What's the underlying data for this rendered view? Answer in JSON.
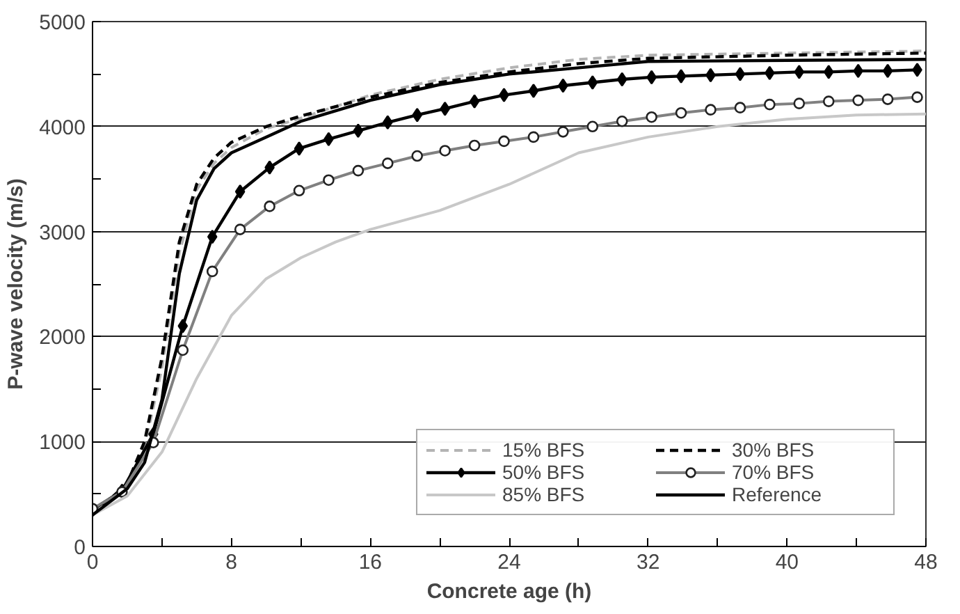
{
  "chart_data": {
    "type": "line",
    "xlabel": "Concrete age (h)",
    "ylabel": "P-wave velocity (m/s)",
    "xlim": [
      0,
      48
    ],
    "ylim": [
      0,
      5000
    ],
    "xticks": [
      0,
      {
        "value": 4,
        "label": null
      },
      8,
      {
        "value": 12,
        "label": null
      },
      16,
      {
        "value": 20,
        "label": null
      },
      24,
      {
        "value": 28,
        "label": null
      },
      32,
      {
        "value": 36,
        "label": null
      },
      40,
      {
        "value": 44,
        "label": null
      },
      48
    ],
    "yticks": [
      0,
      {
        "value": 500,
        "label": null
      },
      1000,
      {
        "value": 1500,
        "label": null
      },
      2000,
      {
        "value": 2500,
        "label": null
      },
      3000,
      {
        "value": 3500,
        "label": null
      },
      4000,
      {
        "value": 4500,
        "label": null
      },
      5000
    ],
    "grid": "y",
    "legend": "bottom right",
    "series": [
      {
        "name": "15% BFS",
        "color": "#b4b4b4",
        "line_style": "dashed",
        "marker": "none",
        "x": [
          0,
          2,
          3,
          4,
          5,
          6,
          7,
          8,
          10,
          12,
          16,
          20,
          24,
          28,
          32,
          40,
          48
        ],
        "values": [
          320,
          580,
          950,
          1700,
          2800,
          3400,
          3650,
          3800,
          3980,
          4080,
          4300,
          4450,
          4560,
          4640,
          4680,
          4700,
          4720
        ]
      },
      {
        "name": "30% BFS",
        "color": "#000000",
        "line_style": "dashed",
        "marker": "none",
        "x": [
          0,
          2,
          3,
          4,
          5,
          6,
          7,
          8,
          10,
          12,
          16,
          20,
          24,
          28,
          32,
          40,
          48
        ],
        "values": [
          300,
          600,
          1000,
          1800,
          2900,
          3450,
          3700,
          3850,
          4000,
          4100,
          4280,
          4420,
          4520,
          4600,
          4650,
          4680,
          4700
        ]
      },
      {
        "name": "50% BFS",
        "color": "#000000",
        "line_style": "solid",
        "marker": "diamond",
        "x": [
          0,
          1.7,
          3.5,
          5.2,
          6.9,
          8.5,
          10.2,
          11.9,
          13.6,
          15.3,
          17,
          18.7,
          20.3,
          22,
          23.7,
          25.4,
          27.1,
          28.8,
          30.5,
          32.2,
          33.9,
          35.6,
          37.3,
          39,
          40.7,
          42.4,
          44.1,
          45.8,
          47.5
        ],
        "values": [
          350,
          530,
          1070,
          2100,
          2950,
          3380,
          3610,
          3790,
          3880,
          3960,
          4040,
          4110,
          4170,
          4240,
          4300,
          4340,
          4390,
          4420,
          4450,
          4470,
          4480,
          4490,
          4500,
          4510,
          4520,
          4520,
          4530,
          4530,
          4540
        ]
      },
      {
        "name": "70% BFS",
        "color": "#808080",
        "line_style": "solid",
        "marker": "circle",
        "x": [
          0,
          1.7,
          3.5,
          5.2,
          6.9,
          8.5,
          10.2,
          11.9,
          13.6,
          15.3,
          17,
          18.7,
          20.3,
          22,
          23.7,
          25.4,
          27.1,
          28.8,
          30.5,
          32.2,
          33.9,
          35.6,
          37.3,
          39,
          40.7,
          42.4,
          44.1,
          45.8,
          47.5
        ],
        "values": [
          360,
          520,
          990,
          1870,
          2620,
          3020,
          3240,
          3390,
          3490,
          3580,
          3650,
          3720,
          3770,
          3820,
          3860,
          3900,
          3950,
          4000,
          4050,
          4090,
          4130,
          4160,
          4180,
          4210,
          4220,
          4240,
          4250,
          4260,
          4280
        ]
      },
      {
        "name": "85% BFS",
        "color": "#c8c8c8",
        "line_style": "solid",
        "marker": "none",
        "x": [
          0,
          2,
          4,
          6,
          8,
          10,
          12,
          14,
          16,
          20,
          24,
          28,
          32,
          36,
          40,
          44,
          48
        ],
        "values": [
          300,
          480,
          900,
          1600,
          2200,
          2550,
          2750,
          2900,
          3020,
          3200,
          3450,
          3750,
          3900,
          4000,
          4070,
          4110,
          4120
        ]
      },
      {
        "name": "Reference",
        "color": "#000000",
        "line_style": "solid",
        "marker": "none",
        "x": [
          0,
          2,
          3,
          4,
          5,
          6,
          7,
          8,
          10,
          12,
          16,
          20,
          24,
          28,
          32,
          40,
          48
        ],
        "values": [
          300,
          550,
          800,
          1400,
          2600,
          3300,
          3600,
          3750,
          3900,
          4050,
          4250,
          4400,
          4500,
          4560,
          4620,
          4630,
          4640
        ]
      }
    ]
  }
}
